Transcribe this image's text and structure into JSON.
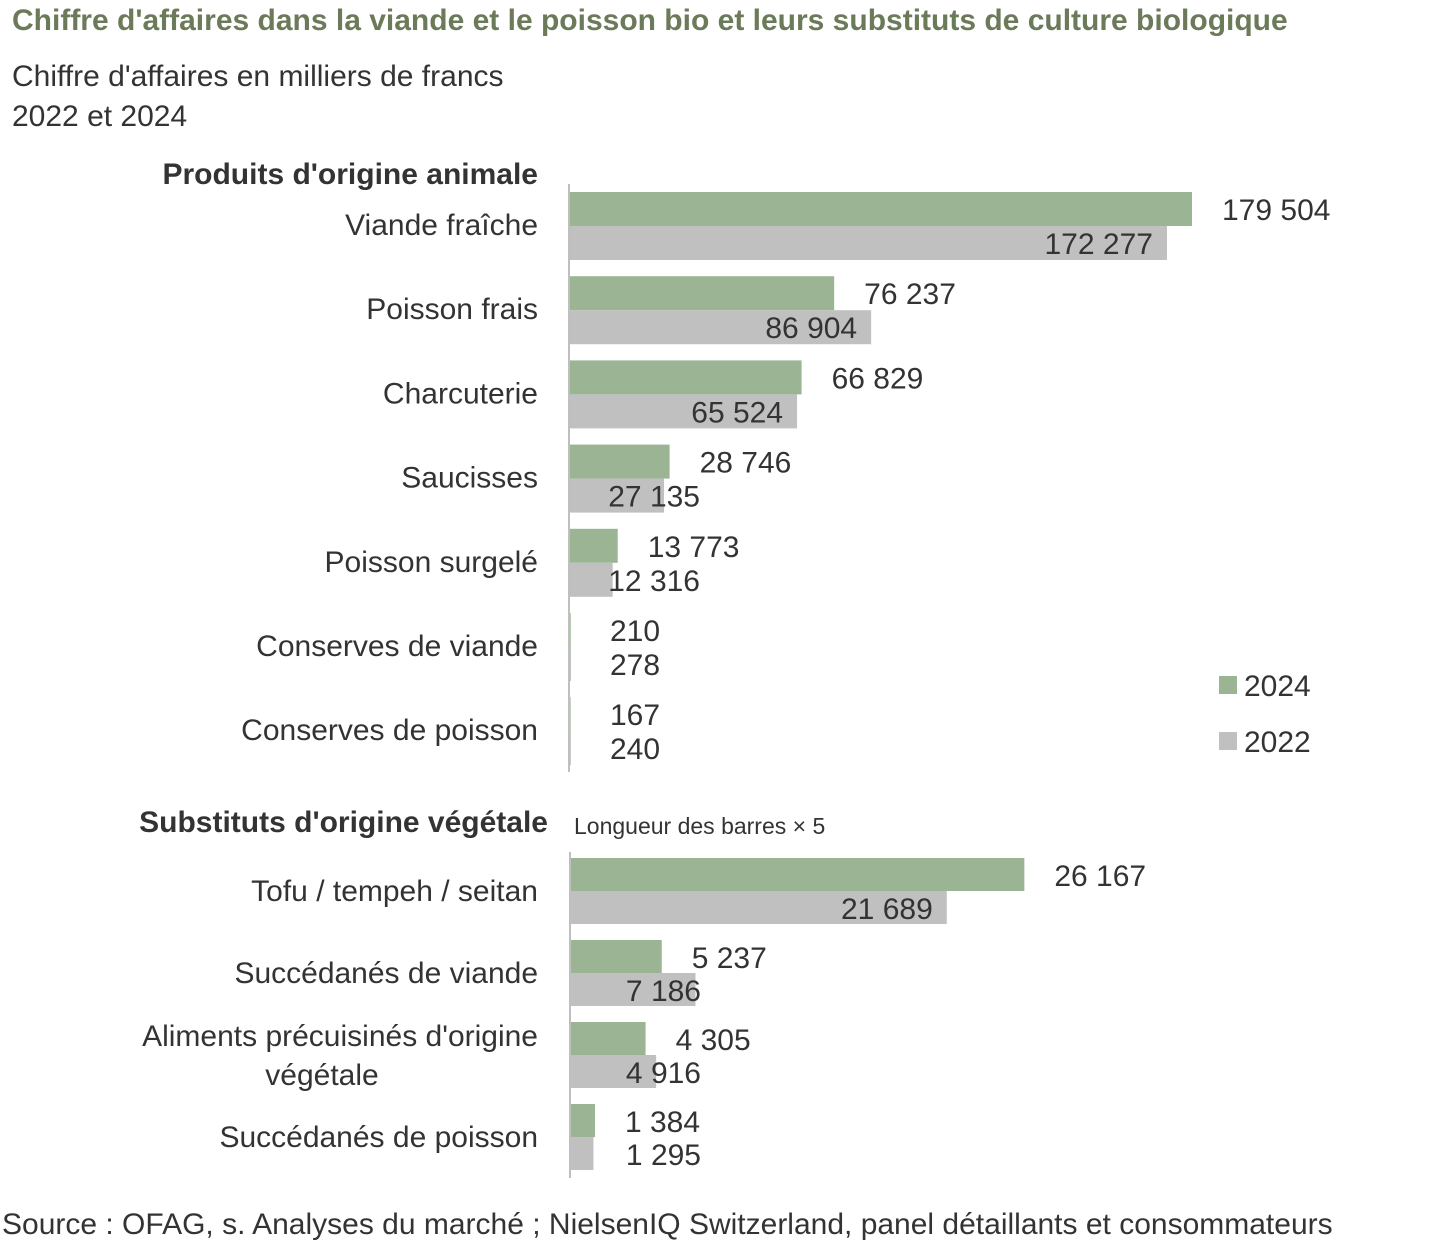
{
  "title": "Chiffre d'affaires dans la viande et le poisson bio et leurs substituts de culture biologique",
  "subtitle_line1": "Chiffre d'affaires en milliers de francs",
  "subtitle_line2": "2022 et 2024",
  "source": "Source : OFAG, s. Analyses du marché ; NielsenIQ Switzerland, panel détaillants et consommateurs",
  "colors": {
    "y2024": "#9bb594",
    "y2022": "#c0c0c0",
    "axis": "#bfbfbf"
  },
  "chart_data": [
    {
      "type": "bar",
      "orientation": "horizontal",
      "section_title": "Produits d'origine animale",
      "categories": [
        "Viande fraîche",
        "Poisson frais",
        "Charcuterie",
        "Saucisses",
        "Poisson surgelé",
        "Conserves de viande",
        "Conserves de poisson"
      ],
      "series": [
        {
          "name": "2024",
          "values": [
            179504,
            76237,
            66829,
            28746,
            13773,
            210,
            167
          ],
          "labels": [
            "179 504",
            "76 237",
            "66 829",
            "28 746",
            "13 773",
            "210",
            "167"
          ]
        },
        {
          "name": "2022",
          "values": [
            172277,
            86904,
            65524,
            27135,
            12316,
            278,
            240
          ],
          "labels": [
            "172 277",
            "86 904",
            "65 524",
            "27 135",
            "12 316",
            "278",
            "240"
          ]
        }
      ],
      "legend": [
        "2024",
        "2022"
      ],
      "legend_position": "bottom-right"
    },
    {
      "type": "bar",
      "orientation": "horizontal",
      "section_title": "Substituts d'origine végétale",
      "note": "Longueur des barres × 5",
      "bar_scale_factor": 5,
      "categories": [
        "Tofu / tempeh / seitan",
        "Succédanés de viande",
        "Aliments précuisinés d'origine végétale",
        "Succédanés de poisson"
      ],
      "series": [
        {
          "name": "2024",
          "values": [
            26167,
            5237,
            4305,
            1384
          ],
          "labels": [
            "26 167",
            "5 237",
            "4 305",
            "1 384"
          ]
        },
        {
          "name": "2022",
          "values": [
            21689,
            7186,
            4916,
            1295
          ],
          "labels": [
            "21 689",
            "7 186",
            "4 916",
            "1 295"
          ]
        }
      ]
    }
  ]
}
